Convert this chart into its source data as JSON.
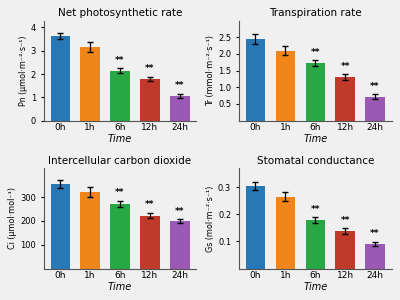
{
  "subplots": [
    {
      "title": "Net photosynthetic rate",
      "ylabel": "Pn (μmol·m⁻²·s⁻¹)",
      "categories": [
        "0h",
        "1h",
        "6h",
        "12h",
        "24h"
      ],
      "values": [
        3.62,
        3.17,
        2.15,
        1.8,
        1.07
      ],
      "errors": [
        0.13,
        0.22,
        0.1,
        0.09,
        0.09
      ],
      "sig": [
        "",
        "",
        "**",
        "**",
        "**"
      ],
      "ylim": [
        0,
        4.3
      ],
      "yticks": [
        0,
        1,
        2,
        3,
        4
      ]
    },
    {
      "title": "Transpiration rate",
      "ylabel": "Tr (mmol·m⁻²·s⁻¹)",
      "categories": [
        "0h",
        "1h",
        "6h",
        "12h",
        "24h"
      ],
      "values": [
        2.45,
        2.1,
        1.73,
        1.3,
        0.72
      ],
      "errors": [
        0.14,
        0.13,
        0.08,
        0.09,
        0.07
      ],
      "sig": [
        "",
        "",
        "**",
        "**",
        "**"
      ],
      "ylim": [
        0,
        3.0
      ],
      "yticks": [
        0.5,
        1.0,
        1.5,
        2.0,
        2.5
      ]
    },
    {
      "title": "Intercellular carbon dioxide",
      "ylabel": "Ci (μmol·mol⁻¹)",
      "categories": [
        "0h",
        "1h",
        "6h",
        "12h",
        "24h"
      ],
      "values": [
        355,
        322,
        272,
        222,
        198
      ],
      "errors": [
        16,
        22,
        12,
        12,
        9
      ],
      "sig": [
        "",
        "",
        "**",
        "**",
        "**"
      ],
      "ylim": [
        0,
        420
      ],
      "yticks": [
        100,
        200,
        300
      ]
    },
    {
      "title": "Stomatal conductance",
      "ylabel": "Gs (mol·m⁻²·s⁻¹)",
      "categories": [
        "0h",
        "1h",
        "6h",
        "12h",
        "24h"
      ],
      "values": [
        0.305,
        0.265,
        0.178,
        0.138,
        0.09
      ],
      "errors": [
        0.013,
        0.016,
        0.011,
        0.01,
        0.008
      ],
      "sig": [
        "",
        "",
        "**",
        "**",
        "**"
      ],
      "ylim": [
        0,
        0.37
      ],
      "yticks": [
        0.1,
        0.2,
        0.3
      ]
    }
  ],
  "bar_colors": [
    "#2878b5",
    "#f08519",
    "#28a745",
    "#c0392b",
    "#9b59b6"
  ],
  "xlabel": "Time",
  "figsize": [
    4.0,
    3.0
  ],
  "dpi": 100,
  "bg_color": "#f0f0f0"
}
